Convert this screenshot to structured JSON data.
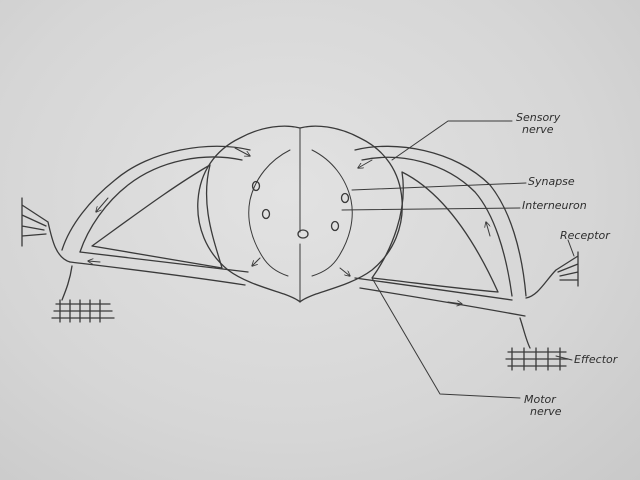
{
  "labels": {
    "sensory_nerve": [
      "Sensory",
      "nerve"
    ],
    "synapse": "Synapse",
    "interneuron": "Interneuron",
    "receptor": "Receptor",
    "effector": "Effector",
    "motor_nerve": [
      "Motor",
      "nerve"
    ]
  },
  "colors": {
    "ink": "#3a3a3a",
    "paper": "#dcdcdc"
  }
}
